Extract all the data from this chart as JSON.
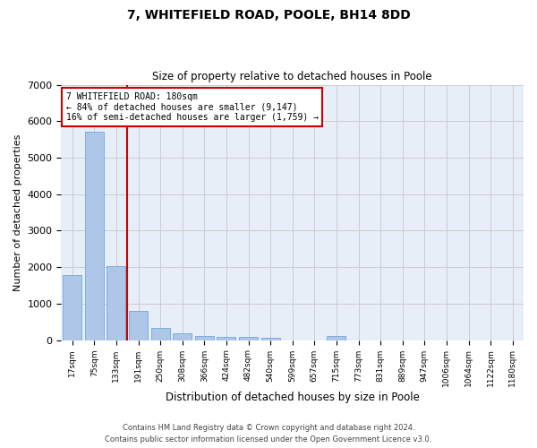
{
  "title": "7, WHITEFIELD ROAD, POOLE, BH14 8DD",
  "subtitle": "Size of property relative to detached houses in Poole",
  "xlabel": "Distribution of detached houses by size in Poole",
  "ylabel": "Number of detached properties",
  "bar_labels": [
    "17sqm",
    "75sqm",
    "133sqm",
    "191sqm",
    "250sqm",
    "308sqm",
    "366sqm",
    "424sqm",
    "482sqm",
    "540sqm",
    "599sqm",
    "657sqm",
    "715sqm",
    "773sqm",
    "831sqm",
    "889sqm",
    "947sqm",
    "1006sqm",
    "1064sqm",
    "1122sqm",
    "1180sqm"
  ],
  "bar_values": [
    1780,
    5700,
    2030,
    800,
    340,
    175,
    110,
    100,
    90,
    60,
    0,
    0,
    110,
    0,
    0,
    0,
    0,
    0,
    0,
    0,
    0
  ],
  "bar_color": "#aec6e8",
  "bar_edge_color": "#5a9fd4",
  "vline_color": "#cc0000",
  "annotation_line1": "7 WHITEFIELD ROAD: 180sqm",
  "annotation_line2": "← 84% of detached houses are smaller (9,147)",
  "annotation_line3": "16% of semi-detached houses are larger (1,759) →",
  "annotation_box_color": "#cc0000",
  "ylim": [
    0,
    7000
  ],
  "yticks": [
    0,
    1000,
    2000,
    3000,
    4000,
    5000,
    6000,
    7000
  ],
  "grid_color": "#cccccc",
  "bg_color": "#e8eef8",
  "footer1": "Contains HM Land Registry data © Crown copyright and database right 2024.",
  "footer2": "Contains public sector information licensed under the Open Government Licence v3.0."
}
